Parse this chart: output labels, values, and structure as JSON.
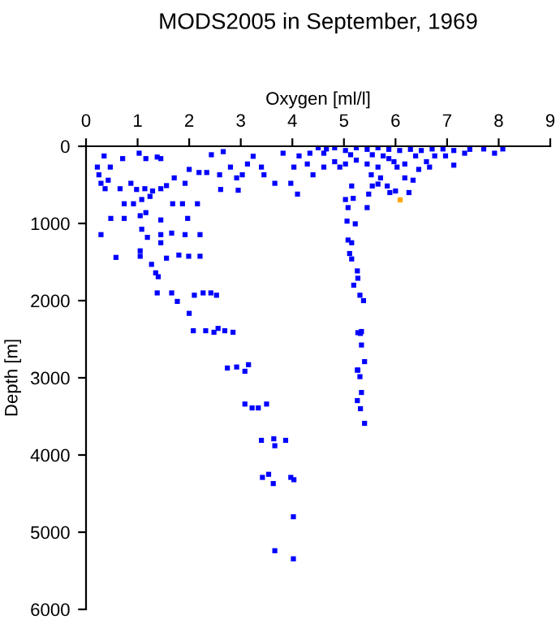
{
  "chart_data": {
    "type": "scatter",
    "title": "MODS2005 in September, 1969",
    "xlabel": "Oxygen [ml/l]",
    "ylabel": "Depth [m]",
    "xlim": [
      0,
      9
    ],
    "xticks": [
      0,
      1,
      2,
      3,
      4,
      5,
      6,
      7,
      8,
      9
    ],
    "ylim": [
      6000,
      0
    ],
    "yticks": [
      0,
      1000,
      2000,
      3000,
      4000,
      5000,
      6000
    ],
    "marker": "square",
    "grid": false,
    "legend": false,
    "series": [
      {
        "color": "#0000ff",
        "x": [
          0.35,
          0.71,
          1.03,
          1.16,
          1.38,
          1.45,
          0.22,
          0.25,
          0.29,
          0.37,
          0.47,
          0.43,
          0.66,
          0.87,
          0.98,
          1.14,
          1.29,
          1.45,
          1.56,
          1.71,
          1.92,
          2.0,
          2.19,
          2.34,
          2.43,
          2.66,
          2.59,
          2.8,
          2.92,
          3.03,
          3.13,
          3.24,
          3.4,
          3.45,
          3.66,
          3.82,
          3.97,
          4.1,
          4.03,
          2.61,
          2.95,
          0.74,
          0.92,
          1.08,
          1.24,
          1.05,
          1.16,
          0.48,
          0.74,
          1.45,
          1.68,
          1.87,
          1.97,
          2.16,
          1.08,
          1.19,
          0.29,
          1.45,
          1.66,
          1.92,
          2.21,
          1.45,
          1.05,
          1.05,
          0.58,
          1.56,
          1.8,
          1.99,
          2.21,
          1.27,
          1.35,
          1.4,
          1.38,
          1.66,
          1.77,
          2.1,
          2.27,
          2.42,
          2.53,
          2.0,
          2.08,
          2.32,
          2.48,
          2.56,
          2.69,
          2.85,
          2.74,
          2.92,
          3.15,
          3.08,
          3.08,
          3.22,
          3.34,
          3.5,
          3.4,
          3.64,
          3.87,
          3.66,
          3.42,
          3.54,
          3.63,
          3.97,
          4.03,
          4.02,
          3.66,
          4.02,
          5.27,
          5.34,
          5.34,
          5.4,
          5.26,
          5.31,
          5.34,
          5.26,
          5.32,
          5.4,
          5.03,
          5.08,
          5.06,
          5.22,
          5.08,
          5.15,
          5.11,
          5.15,
          5.26,
          5.27,
          5.19,
          5.31,
          5.38,
          5.32,
          5.27,
          5.18,
          5.15,
          5.48,
          5.55,
          5.45,
          5.53,
          5.66,
          4.34,
          4.5,
          4.66,
          4.82,
          5.03,
          5.24,
          5.45,
          5.66,
          5.87,
          6.08,
          6.29,
          6.5,
          6.71,
          6.92,
          7.13,
          7.44,
          7.71,
          7.92,
          8.08,
          4.13,
          4.29,
          4.4,
          4.61,
          4.82,
          5.03,
          5.24,
          5.45,
          5.66,
          5.87,
          6.03,
          6.18,
          6.39,
          6.6,
          5.76,
          5.97,
          6.18,
          6.34,
          6.45,
          6.66,
          5.71,
          5.84,
          6.0,
          6.26,
          5.89,
          4.92,
          4.61,
          5.13,
          5.55,
          7.13,
          7.34,
          6.76,
          6.97
        ],
        "values": [
          126,
          160,
          90,
          160,
          140,
          160,
          270,
          370,
          480,
          550,
          270,
          440,
          550,
          480,
          560,
          550,
          580,
          550,
          510,
          410,
          480,
          300,
          340,
          340,
          110,
          70,
          370,
          270,
          410,
          370,
          230,
          130,
          270,
          370,
          480,
          90,
          480,
          620,
          270,
          560,
          570,
          745,
          745,
          690,
          650,
          900,
          860,
          935,
          935,
          955,
          745,
          745,
          935,
          745,
          1075,
          1180,
          1145,
          1145,
          1125,
          1145,
          1145,
          1250,
          1355,
          1425,
          1440,
          1450,
          1410,
          1425,
          1425,
          1530,
          1640,
          1690,
          1900,
          1900,
          2010,
          1930,
          1900,
          1900,
          1930,
          2165,
          2390,
          2390,
          2410,
          2360,
          2390,
          2410,
          2873,
          2860,
          2830,
          2915,
          3340,
          3390,
          3390,
          3340,
          3810,
          3790,
          3810,
          3880,
          4290,
          4250,
          4370,
          4290,
          4320,
          4800,
          5240,
          5345,
          2415,
          2400,
          2575,
          2790,
          2900,
          2985,
          3190,
          3295,
          3400,
          3590,
          690,
          795,
          970,
          1005,
          1215,
          1250,
          1390,
          1460,
          1615,
          1710,
          1800,
          1930,
          2000,
          2425,
          2900,
          675,
          515,
          620,
          515,
          795,
          370,
          490,
          90,
          20,
          35,
          20,
          55,
          20,
          40,
          20,
          40,
          55,
          40,
          55,
          35,
          35,
          55,
          40,
          35,
          90,
          35,
          125,
          230,
          370,
          270,
          200,
          230,
          180,
          230,
          270,
          160,
          270,
          230,
          125,
          200,
          125,
          200,
          410,
          440,
          300,
          270,
          410,
          515,
          580,
          600,
          600,
          270,
          90,
          110,
          110,
          245,
          90,
          125,
          125
        ]
      },
      {
        "color": "#ffa500",
        "x": [
          6.09
        ],
        "values": [
          695
        ]
      }
    ]
  }
}
